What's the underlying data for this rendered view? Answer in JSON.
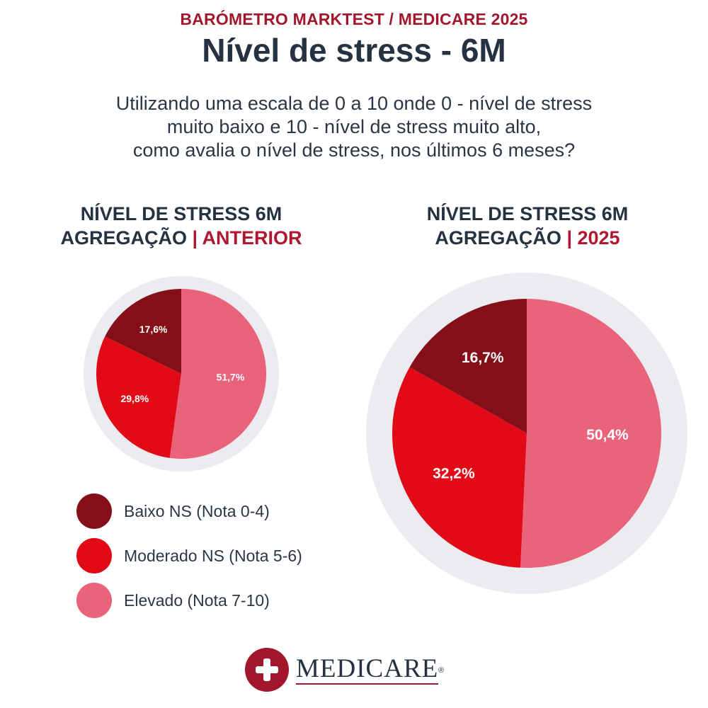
{
  "header": {
    "kicker": "BARÓMETRO MARKTEST / MEDICARE 2025",
    "title": "Nível de stress - 6M"
  },
  "question": {
    "line1": "Utilizando uma escala de 0 a 10 onde 0 - nível de stress",
    "line2": "muito baixo e 10 - nível de stress muito alto,",
    "line3": "como avalia o nível de stress, nos últimos 6 meses?"
  },
  "colors": {
    "baixo": "#850f19",
    "moderado": "#e20a17",
    "elevado": "#e9637b",
    "ring": "#ececf0",
    "accent": "#a3172c"
  },
  "chart_data": [
    {
      "type": "pie",
      "title_line1": "NÍVEL DE STRESS 6M",
      "title_line2": "AGREGAÇÃO",
      "title_separator": " | ",
      "title_accent": "ANTERIOR",
      "categories": [
        "Baixo NS (Nota 0-4)",
        "Moderado NS (Nota 5-6)",
        "Elevado (Nota 7-10)"
      ],
      "values": [
        17.6,
        29.8,
        51.7
      ],
      "labels": [
        "17,6%",
        "29,8%",
        "51,7%"
      ]
    },
    {
      "type": "pie",
      "title_line1": "NÍVEL DE STRESS 6M",
      "title_line2": "AGREGAÇÃO",
      "title_separator": " | ",
      "title_accent": "2025",
      "categories": [
        "Baixo NS (Nota 0-4)",
        "Moderado NS (Nota 5-6)",
        "Elevado (Nota 7-10)"
      ],
      "values": [
        16.7,
        32.2,
        50.4
      ],
      "labels": [
        "16,7%",
        "32,2%",
        "50,4%"
      ]
    }
  ],
  "legend": {
    "items": [
      {
        "label": "Baixo NS (Nota 0-4)"
      },
      {
        "label": "Moderado NS (Nota 5-6)"
      },
      {
        "label": "Elevado (Nota 7-10)"
      }
    ]
  },
  "brand": {
    "name": "MEDICARE",
    "reg": "®"
  }
}
